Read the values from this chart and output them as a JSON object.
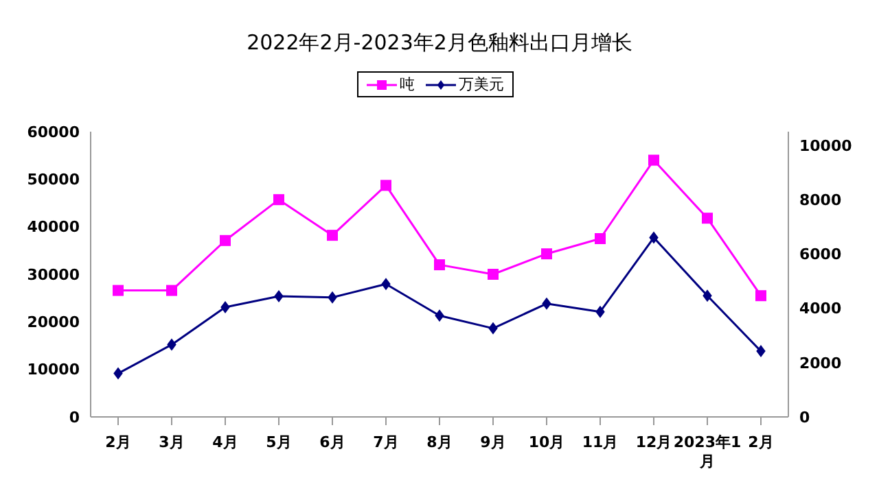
{
  "chart_data": {
    "type": "line",
    "title": "2022年2月-2023年2月色釉料出口月增长",
    "categories": [
      "2月",
      "3月",
      "4月",
      "5月",
      "6月",
      "7月",
      "8月",
      "9月",
      "10月",
      "11月",
      "12月",
      "2023年1月",
      "2月"
    ],
    "series": [
      {
        "name": "吨",
        "color": "#ff00ff",
        "marker": "square",
        "values": [
          26600,
          26600,
          37100,
          45700,
          38200,
          48700,
          32000,
          30000,
          34300,
          37500,
          54000,
          41800,
          25500
        ]
      },
      {
        "name": "万美元",
        "color": "#000080",
        "marker": "diamond",
        "axis": "y2",
        "values": [
          1600,
          2660,
          4040,
          4440,
          4400,
          4890,
          3730,
          3260,
          4170,
          3870,
          6600,
          4460,
          2420
        ]
      }
    ],
    "ylim": [
      0,
      60000
    ],
    "yticks": [
      0,
      10000,
      20000,
      30000,
      40000,
      50000,
      60000
    ],
    "y2lim": [
      0,
      10500
    ],
    "y2ticks": [
      0,
      2000,
      4000,
      6000,
      8000,
      10000
    ],
    "legend": "top",
    "grid": false
  }
}
